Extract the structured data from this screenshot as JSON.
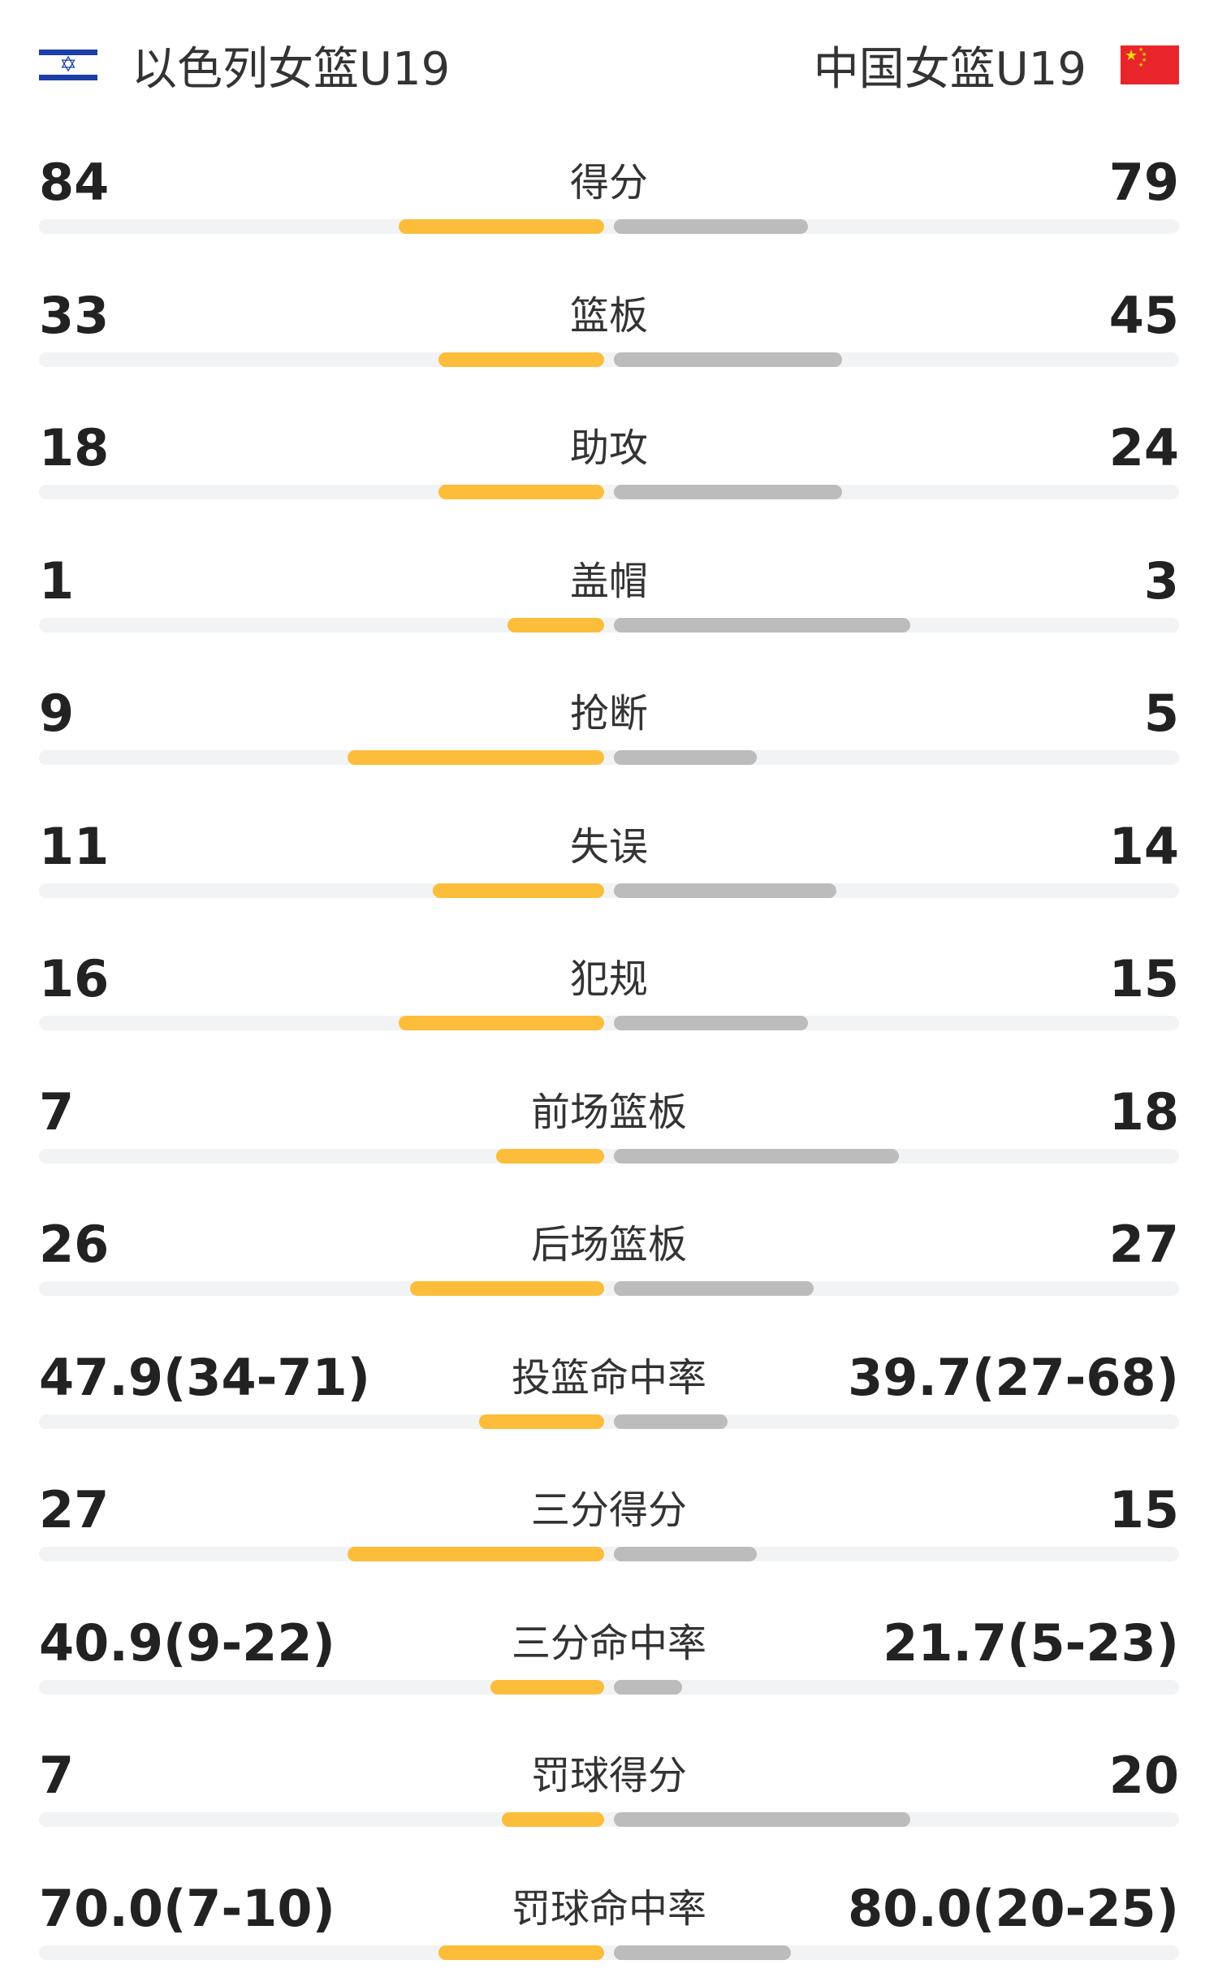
{
  "teams": {
    "home": {
      "name": "以色列女篮U19",
      "flag_icon": "israel-flag-icon",
      "bar_color": "#fbbd3a"
    },
    "away": {
      "name": "中国女篮U19",
      "flag_icon": "china-flag-icon",
      "bar_color": "#bcbcbc"
    }
  },
  "stats": [
    {
      "label": "得分",
      "home": "84",
      "away": "79",
      "home_fill": 0.36,
      "away_fill": 0.34
    },
    {
      "label": "篮板",
      "home": "33",
      "away": "45",
      "home_fill": 0.29,
      "away_fill": 0.4
    },
    {
      "label": "助攻",
      "home": "18",
      "away": "24",
      "home_fill": 0.29,
      "away_fill": 0.4
    },
    {
      "label": "盖帽",
      "home": "1",
      "away": "3",
      "home_fill": 0.17,
      "away_fill": 0.52
    },
    {
      "label": "抢断",
      "home": "9",
      "away": "5",
      "home_fill": 0.45,
      "away_fill": 0.25
    },
    {
      "label": "失误",
      "home": "11",
      "away": "14",
      "home_fill": 0.3,
      "away_fill": 0.39
    },
    {
      "label": "犯规",
      "home": "16",
      "away": "15",
      "home_fill": 0.36,
      "away_fill": 0.34
    },
    {
      "label": "前场篮板",
      "home": "7",
      "away": "18",
      "home_fill": 0.19,
      "away_fill": 0.5
    },
    {
      "label": "后场篮板",
      "home": "26",
      "away": "27",
      "home_fill": 0.34,
      "away_fill": 0.35
    },
    {
      "label": "投篮命中率",
      "home": "47.9(34-71)",
      "away": "39.7(27-68)",
      "home_fill": 0.22,
      "away_fill": 0.2
    },
    {
      "label": "三分得分",
      "home": "27",
      "away": "15",
      "home_fill": 0.45,
      "away_fill": 0.25
    },
    {
      "label": "三分命中率",
      "home": "40.9(9-22)",
      "away": "21.7(5-23)",
      "home_fill": 0.2,
      "away_fill": 0.12
    },
    {
      "label": "罚球得分",
      "home": "7",
      "away": "20",
      "home_fill": 0.18,
      "away_fill": 0.52
    },
    {
      "label": "罚球命中率",
      "home": "70.0(7-10)",
      "away": "80.0(20-25)",
      "home_fill": 0.29,
      "away_fill": 0.31
    }
  ]
}
